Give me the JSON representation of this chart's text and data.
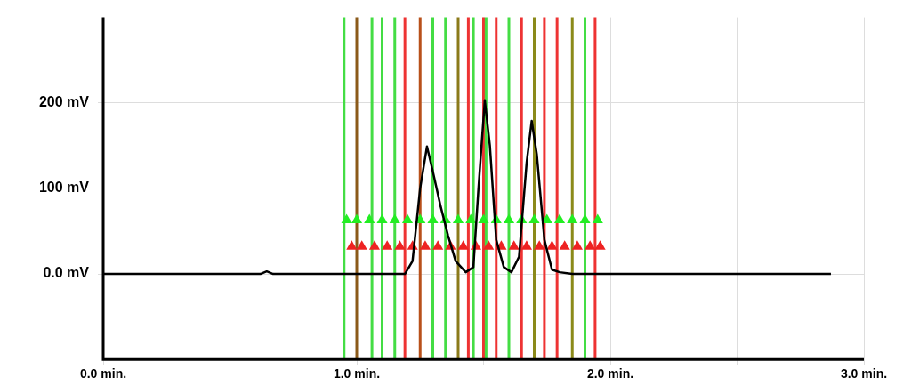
{
  "chart_data": {
    "type": "line",
    "xlim": [
      0,
      3
    ],
    "ylim": [
      -100,
      300
    ],
    "xticks": [
      {
        "value": 0,
        "label": "0.0 min."
      },
      {
        "value": 0.5,
        "label": null
      },
      {
        "value": 1,
        "label": "1.0 min."
      },
      {
        "value": 1.5,
        "label": null
      },
      {
        "value": 2,
        "label": "2.0 min."
      },
      {
        "value": 2.5,
        "label": null
      },
      {
        "value": 3,
        "label": "3.0 min."
      }
    ],
    "yticks": [
      {
        "value": 0,
        "label": "0.0 mV"
      },
      {
        "value": 100,
        "label": "100 mV"
      },
      {
        "value": 200,
        "label": "200 mV"
      }
    ],
    "grid": true,
    "legend": false,
    "marker": "none",
    "line_style": "solid",
    "series": [
      {
        "color": "#000000",
        "x": [
          0,
          0.62,
          0.645,
          0.67,
          1.19,
          1.22,
          1.25,
          1.277,
          1.3,
          1.33,
          1.36,
          1.39,
          1.43,
          1.46,
          1.48,
          1.505,
          1.525,
          1.55,
          1.58,
          1.61,
          1.64,
          1.67,
          1.69,
          1.71,
          1.74,
          1.77,
          1.8,
          1.85,
          2.87
        ],
        "values": [
          0,
          0,
          3,
          0,
          0,
          15,
          100,
          149,
          120,
          80,
          45,
          15,
          2,
          8,
          100,
          203,
          150,
          40,
          8,
          2,
          20,
          130,
          179,
          140,
          40,
          5,
          2,
          0,
          0
        ]
      },
      {
        "type": "scatter",
        "marker": "triangle",
        "color": "#22ee22",
        "x": [
          0.96,
          1.0,
          1.05,
          1.1,
          1.15,
          1.2,
          1.25,
          1.3,
          1.35,
          1.4,
          1.45,
          1.5,
          1.55,
          1.6,
          1.65,
          1.7,
          1.75,
          1.8,
          1.85,
          1.9,
          1.95
        ],
        "values": [
          63,
          63,
          63,
          63,
          63,
          63,
          63,
          63,
          63,
          63,
          63,
          63,
          63,
          63,
          63,
          63,
          63,
          63,
          63,
          63,
          63
        ]
      },
      {
        "type": "scatter",
        "marker": "triangle",
        "color": "#ee2222",
        "x": [
          0.98,
          1.02,
          1.07,
          1.12,
          1.17,
          1.22,
          1.27,
          1.32,
          1.37,
          1.42,
          1.47,
          1.52,
          1.57,
          1.62,
          1.67,
          1.72,
          1.77,
          1.82,
          1.87,
          1.92,
          1.96
        ],
        "values": [
          32,
          32,
          32,
          32,
          32,
          32,
          32,
          32,
          32,
          32,
          32,
          32,
          32,
          32,
          32,
          32,
          32,
          32,
          32,
          32,
          32
        ]
      }
    ],
    "ref_lines": [
      {
        "axis": "x",
        "value": 0.95,
        "color": "#44dd44"
      },
      {
        "axis": "x",
        "value": 1.0,
        "color": "#8b5a1a"
      },
      {
        "axis": "x",
        "value": 1.06,
        "color": "#44dd44"
      },
      {
        "axis": "x",
        "value": 1.1,
        "color": "#44dd44"
      },
      {
        "axis": "x",
        "value": 1.15,
        "color": "#44dd44"
      },
      {
        "axis": "x",
        "value": 1.19,
        "color": "#ee3333"
      },
      {
        "axis": "x",
        "value": 1.25,
        "color": "#b8501a"
      },
      {
        "axis": "x",
        "value": 1.3,
        "color": "#44dd44"
      },
      {
        "axis": "x",
        "value": 1.35,
        "color": "#44dd44"
      },
      {
        "axis": "x",
        "value": 1.4,
        "color": "#8b7a1a"
      },
      {
        "axis": "x",
        "value": 1.44,
        "color": "#ee3333"
      },
      {
        "axis": "x",
        "value": 1.46,
        "color": "#44dd44"
      },
      {
        "axis": "x",
        "value": 1.5,
        "color": "#ee3333"
      },
      {
        "axis": "x",
        "value": 1.51,
        "color": "#44dd44"
      },
      {
        "axis": "x",
        "value": 1.55,
        "color": "#ee3333"
      },
      {
        "axis": "x",
        "value": 1.6,
        "color": "#44dd44"
      },
      {
        "axis": "x",
        "value": 1.65,
        "color": "#ee3333"
      },
      {
        "axis": "x",
        "value": 1.7,
        "color": "#8b8a1a"
      },
      {
        "axis": "x",
        "value": 1.74,
        "color": "#ee3333"
      },
      {
        "axis": "x",
        "value": 1.79,
        "color": "#ee3333"
      },
      {
        "axis": "x",
        "value": 1.85,
        "color": "#8b8a1a"
      },
      {
        "axis": "x",
        "value": 1.9,
        "color": "#44dd44"
      },
      {
        "axis": "x",
        "value": 1.94,
        "color": "#ee3333"
      }
    ]
  }
}
